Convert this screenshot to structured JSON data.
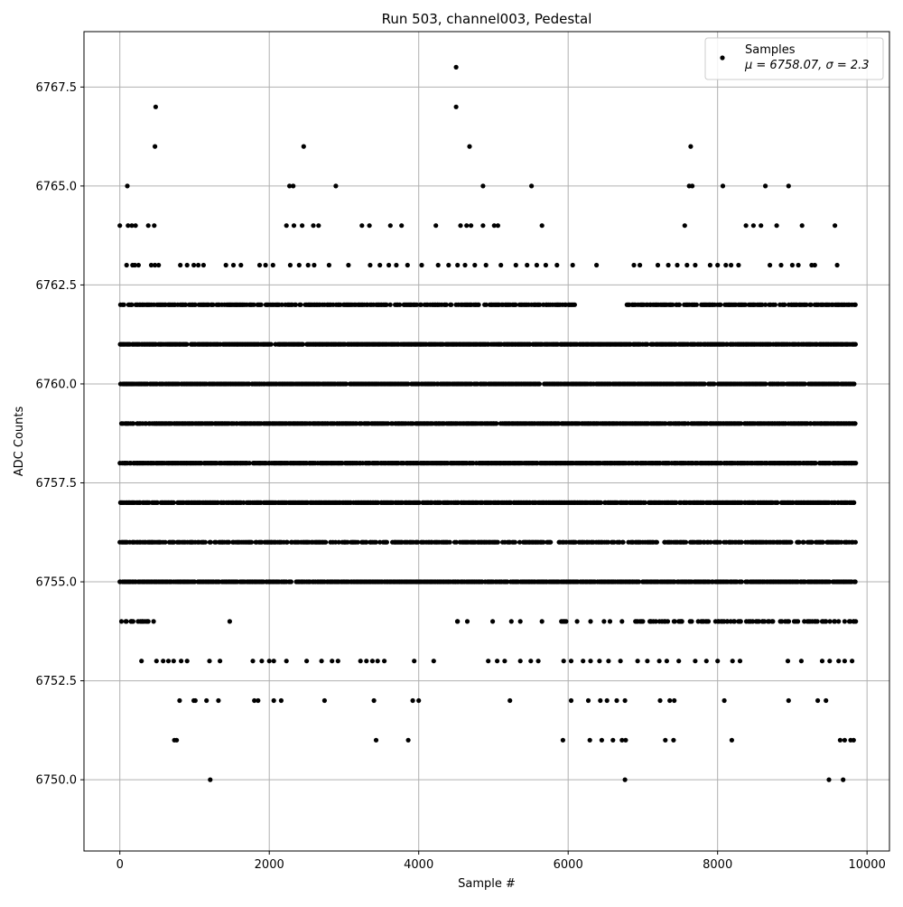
{
  "chart_data": {
    "type": "scatter",
    "title": "Run 503, channel003, Pedestal",
    "xlabel": "Sample #",
    "ylabel": "ADC Counts",
    "xlim": [
      -480,
      10300
    ],
    "ylim": [
      6748.2,
      6768.9
    ],
    "x_ticks": [
      0,
      2000,
      4000,
      6000,
      8000,
      10000
    ],
    "x_tick_labels": [
      "0",
      "2000",
      "4000",
      "6000",
      "8000",
      "10000"
    ],
    "y_ticks": [
      6750.0,
      6752.5,
      6755.0,
      6757.5,
      6760.0,
      6762.5,
      6765.0,
      6767.5
    ],
    "y_tick_labels": [
      "6750.0",
      "6752.5",
      "6755.0",
      "6757.5",
      "6760.0",
      "6762.5",
      "6765.0",
      "6767.5"
    ],
    "grid": true,
    "legend_position": "top-right",
    "marker_color": "#000000",
    "series": [
      {
        "name": "Samples",
        "legend_label": "Samples",
        "legend_stats": "μ = 6758.07, σ = 2.3",
        "points": [
          [
            0,
            6764
          ],
          [
            100,
            6765
          ],
          [
            110,
            6764
          ],
          [
            160,
            6764
          ],
          [
            210,
            6764
          ],
          [
            480,
            6767
          ],
          [
            470,
            6766
          ],
          [
            380,
            6764
          ],
          [
            460,
            6764
          ],
          [
            90,
            6763
          ],
          [
            170,
            6763
          ],
          [
            200,
            6763
          ],
          [
            250,
            6763
          ],
          [
            420,
            6763
          ],
          [
            470,
            6763
          ],
          [
            520,
            6763
          ],
          [
            810,
            6763
          ],
          [
            900,
            6763
          ],
          [
            990,
            6763
          ],
          [
            1050,
            6763
          ],
          [
            1120,
            6763
          ],
          [
            1420,
            6763
          ],
          [
            1520,
            6763
          ],
          [
            1620,
            6763
          ],
          [
            1870,
            6763
          ],
          [
            1950,
            6763
          ],
          [
            2050,
            6763
          ],
          [
            2280,
            6763
          ],
          [
            2400,
            6763
          ],
          [
            2520,
            6763
          ],
          [
            2600,
            6763
          ],
          [
            2800,
            6763
          ],
          [
            3060,
            6763
          ],
          [
            2230,
            6764
          ],
          [
            2330,
            6764
          ],
          [
            2440,
            6764
          ],
          [
            2590,
            6764
          ],
          [
            2660,
            6764
          ],
          [
            3240,
            6764
          ],
          [
            3340,
            6764
          ],
          [
            3620,
            6764
          ],
          [
            3770,
            6764
          ],
          [
            4230,
            6764
          ],
          [
            4560,
            6764
          ],
          [
            4640,
            6764
          ],
          [
            4700,
            6764
          ],
          [
            4860,
            6764
          ],
          [
            5010,
            6764
          ],
          [
            5060,
            6764
          ],
          [
            5650,
            6764
          ],
          [
            2270,
            6765
          ],
          [
            2320,
            6765
          ],
          [
            2460,
            6766
          ],
          [
            2890,
            6765
          ],
          [
            4500,
            6768
          ],
          [
            4500,
            6767
          ],
          [
            4680,
            6766
          ],
          [
            4860,
            6765
          ],
          [
            5510,
            6765
          ],
          [
            3350,
            6763
          ],
          [
            3480,
            6763
          ],
          [
            3600,
            6763
          ],
          [
            3700,
            6763
          ],
          [
            3850,
            6763
          ],
          [
            4040,
            6763
          ],
          [
            4260,
            6763
          ],
          [
            4400,
            6763
          ],
          [
            4520,
            6763
          ],
          [
            4620,
            6763
          ],
          [
            4750,
            6763
          ],
          [
            4900,
            6763
          ],
          [
            5100,
            6763
          ],
          [
            5300,
            6763
          ],
          [
            5450,
            6763
          ],
          [
            5580,
            6763
          ],
          [
            5700,
            6763
          ],
          [
            5850,
            6763
          ],
          [
            6060,
            6763
          ],
          [
            6380,
            6763
          ],
          [
            6880,
            6763
          ],
          [
            7460,
            6763
          ],
          [
            7560,
            6764
          ],
          [
            7640,
            6766
          ],
          [
            7620,
            6765
          ],
          [
            7660,
            6765
          ],
          [
            7590,
            6763
          ],
          [
            7700,
            6763
          ],
          [
            7900,
            6763
          ],
          [
            8000,
            6763
          ],
          [
            8070,
            6765
          ],
          [
            8110,
            6763
          ],
          [
            8280,
            6763
          ],
          [
            8380,
            6764
          ],
          [
            8480,
            6764
          ],
          [
            8580,
            6764
          ],
          [
            8640,
            6765
          ],
          [
            8790,
            6764
          ],
          [
            8950,
            6765
          ],
          [
            8700,
            6763
          ],
          [
            9000,
            6763
          ],
          [
            9130,
            6764
          ],
          [
            9260,
            6763
          ],
          [
            9570,
            6764
          ],
          [
            9600,
            6763
          ],
          [
            6960,
            6763
          ],
          [
            7200,
            6763
          ],
          [
            7340,
            6763
          ],
          [
            8180,
            6763
          ],
          [
            8850,
            6763
          ],
          [
            9080,
            6763
          ],
          [
            9300,
            6763
          ],
          [
            0,
            6756
          ],
          [
            0,
            6755
          ],
          [
            80,
            6754
          ],
          [
            150,
            6754
          ],
          [
            290,
            6753
          ],
          [
            300,
            6754
          ],
          [
            380,
            6754
          ],
          [
            490,
            6753
          ],
          [
            580,
            6753
          ],
          [
            650,
            6753
          ],
          [
            720,
            6753
          ],
          [
            820,
            6753
          ],
          [
            900,
            6753
          ],
          [
            1200,
            6753
          ],
          [
            1340,
            6753
          ],
          [
            1470,
            6754
          ],
          [
            730,
            6751
          ],
          [
            760,
            6751
          ],
          [
            800,
            6752
          ],
          [
            990,
            6752
          ],
          [
            1010,
            6752
          ],
          [
            1160,
            6752
          ],
          [
            1320,
            6752
          ],
          [
            1210,
            6750
          ],
          [
            1780,
            6753
          ],
          [
            1900,
            6753
          ],
          [
            2000,
            6753
          ],
          [
            2060,
            6753
          ],
          [
            2230,
            6753
          ],
          [
            2500,
            6753
          ],
          [
            2700,
            6753
          ],
          [
            2840,
            6753
          ],
          [
            2920,
            6753
          ],
          [
            3220,
            6753
          ],
          [
            3300,
            6753
          ],
          [
            3380,
            6753
          ],
          [
            3450,
            6753
          ],
          [
            3540,
            6753
          ],
          [
            3940,
            6753
          ],
          [
            4200,
            6753
          ],
          [
            1800,
            6752
          ],
          [
            1850,
            6752
          ],
          [
            2060,
            6752
          ],
          [
            2160,
            6752
          ],
          [
            2740,
            6752
          ],
          [
            3400,
            6752
          ],
          [
            3920,
            6752
          ],
          [
            4000,
            6752
          ],
          [
            3430,
            6751
          ],
          [
            3860,
            6751
          ],
          [
            4930,
            6753
          ],
          [
            5050,
            6753
          ],
          [
            5150,
            6753
          ],
          [
            5360,
            6753
          ],
          [
            5500,
            6753
          ],
          [
            5600,
            6753
          ],
          [
            5940,
            6753
          ],
          [
            6040,
            6753
          ],
          [
            6200,
            6753
          ],
          [
            6300,
            6753
          ],
          [
            6420,
            6753
          ],
          [
            6540,
            6753
          ],
          [
            6700,
            6753
          ],
          [
            6930,
            6753
          ],
          [
            7060,
            6753
          ],
          [
            7220,
            6753
          ],
          [
            7320,
            6753
          ],
          [
            7480,
            6753
          ],
          [
            7700,
            6753
          ],
          [
            7850,
            6753
          ],
          [
            8000,
            6753
          ],
          [
            8200,
            6753
          ],
          [
            8300,
            6753
          ],
          [
            8940,
            6753
          ],
          [
            9120,
            6753
          ],
          [
            9400,
            6753
          ],
          [
            9500,
            6753
          ],
          [
            9620,
            6753
          ],
          [
            9700,
            6753
          ],
          [
            9800,
            6753
          ],
          [
            5220,
            6752
          ],
          [
            6040,
            6752
          ],
          [
            6270,
            6752
          ],
          [
            6430,
            6752
          ],
          [
            6520,
            6752
          ],
          [
            6650,
            6752
          ],
          [
            6760,
            6752
          ],
          [
            7230,
            6752
          ],
          [
            7360,
            6752
          ],
          [
            7420,
            6752
          ],
          [
            8090,
            6752
          ],
          [
            8950,
            6752
          ],
          [
            9340,
            6752
          ],
          [
            9450,
            6752
          ],
          [
            5930,
            6751
          ],
          [
            6290,
            6751
          ],
          [
            6450,
            6751
          ],
          [
            6600,
            6751
          ],
          [
            6720,
            6751
          ],
          [
            6770,
            6751
          ],
          [
            7300,
            6751
          ],
          [
            7410,
            6751
          ],
          [
            8190,
            6751
          ],
          [
            9640,
            6751
          ],
          [
            9700,
            6751
          ],
          [
            9780,
            6751
          ],
          [
            9820,
            6751
          ],
          [
            6760,
            6750
          ],
          [
            9490,
            6750
          ],
          [
            9680,
            6750
          ],
          [
            4520,
            6754
          ],
          [
            4650,
            6754
          ],
          [
            4990,
            6754
          ],
          [
            5240,
            6754
          ],
          [
            5360,
            6754
          ],
          [
            5650,
            6754
          ],
          [
            6120,
            6754
          ],
          [
            6300,
            6754
          ],
          [
            6480,
            6754
          ],
          [
            6560,
            6754
          ],
          [
            6720,
            6754
          ],
          [
            6900,
            6754
          ],
          [
            7100,
            6754
          ],
          [
            7300,
            6754
          ],
          [
            7520,
            6754
          ],
          [
            7740,
            6754
          ],
          [
            8130,
            6754
          ],
          [
            8440,
            6754
          ],
          [
            8740,
            6754
          ],
          [
            8860,
            6754
          ],
          [
            9300,
            6754
          ],
          [
            9450,
            6754
          ],
          [
            9560,
            6754
          ],
          [
            9700,
            6754
          ],
          [
            9820,
            6754
          ]
        ],
        "band_levels": [
          6754,
          6755,
          6756,
          6757,
          6758,
          6759,
          6760,
          6761,
          6762
        ],
        "band_x_range": [
          0,
          9840
        ],
        "band_gaps": {
          "6754": [
            [
              480,
              4480
            ],
            [
              4540,
              5600
            ],
            [
              5620,
              5900
            ],
            [
              6000,
              6900
            ]
          ],
          "6762": [
            [
              6100,
              6780
            ],
            [
              7500,
              7540
            ]
          ],
          "6756": [
            [
              4500,
              4540
            ]
          ]
        }
      }
    ]
  }
}
